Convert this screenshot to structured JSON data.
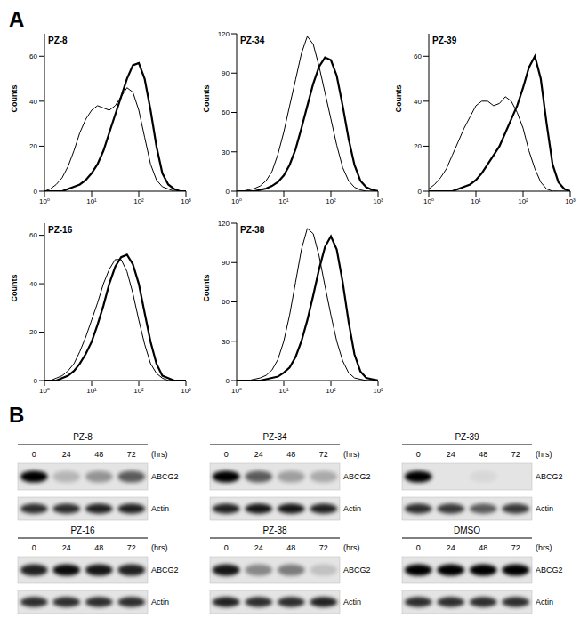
{
  "panel_labels": [
    "A",
    "B"
  ],
  "chart_data": [
    {
      "type": "line",
      "title": "PZ-8",
      "y_label": "Counts",
      "log": "x",
      "x": [
        1,
        1.33,
        1.78,
        2.37,
        3.16,
        4.22,
        5.62,
        7.5,
        10,
        13.3,
        17.8,
        23.7,
        31.6,
        42.2,
        56.2,
        75,
        100,
        133,
        178,
        237,
        316,
        422,
        562,
        750,
        1000
      ],
      "xlim": [
        1,
        1000
      ],
      "xticks": [
        {
          "value": 1,
          "label": "10⁰"
        },
        {
          "value": 10,
          "label": "10¹"
        },
        {
          "value": 100,
          "label": "10²"
        },
        {
          "value": 1000,
          "label": "10³"
        }
      ],
      "ylim": [
        0,
        70
      ],
      "yticks": [
        0,
        20,
        40,
        60
      ],
      "series": [
        {
          "color": "#000000",
          "values": [
            0,
            1,
            3,
            6,
            11,
            18,
            26,
            32,
            36,
            38,
            37,
            36,
            38,
            42,
            46,
            44,
            36,
            24,
            12,
            5,
            2,
            1,
            0,
            0,
            0
          ]
        },
        {
          "color": "#000000",
          "values": [
            0,
            0,
            0,
            0,
            1,
            2,
            3,
            5,
            8,
            12,
            18,
            26,
            34,
            42,
            50,
            56,
            57,
            50,
            36,
            20,
            8,
            3,
            1,
            0,
            0
          ]
        }
      ]
    },
    {
      "type": "line",
      "title": "PZ-34",
      "y_label": "Counts",
      "log": "x",
      "x": [
        1,
        1.33,
        1.78,
        2.37,
        3.16,
        4.22,
        5.62,
        7.5,
        10,
        13.3,
        17.8,
        23.7,
        31.6,
        42.2,
        56.2,
        75,
        100,
        133,
        178,
        237,
        316,
        422,
        562,
        750,
        1000
      ],
      "xlim": [
        1,
        1000
      ],
      "xticks": [
        {
          "value": 1,
          "label": "10⁰"
        },
        {
          "value": 10,
          "label": "10¹"
        },
        {
          "value": 100,
          "label": "10²"
        },
        {
          "value": 1000,
          "label": "10³"
        }
      ],
      "ylim": [
        0,
        120
      ],
      "yticks": [
        0,
        30,
        60,
        90,
        120
      ],
      "series": [
        {
          "color": "#000000",
          "values": [
            0,
            0,
            1,
            2,
            4,
            8,
            15,
            28,
            45,
            65,
            85,
            105,
            118,
            112,
            95,
            75,
            55,
            35,
            18,
            8,
            3,
            1,
            0,
            0,
            0
          ]
        },
        {
          "color": "#000000",
          "values": [
            0,
            0,
            0,
            0,
            1,
            2,
            4,
            7,
            12,
            20,
            32,
            48,
            65,
            82,
            95,
            102,
            100,
            88,
            65,
            40,
            20,
            8,
            3,
            1,
            0
          ]
        }
      ]
    },
    {
      "type": "line",
      "title": "PZ-39",
      "y_label": "Counts",
      "log": "x",
      "x": [
        1,
        1.33,
        1.78,
        2.37,
        3.16,
        4.22,
        5.62,
        7.5,
        10,
        13.3,
        17.8,
        23.7,
        31.6,
        42.2,
        56.2,
        75,
        100,
        133,
        178,
        237,
        316,
        422,
        562,
        750,
        1000
      ],
      "xlim": [
        1,
        1000
      ],
      "xticks": [
        {
          "value": 1,
          "label": "10⁰"
        },
        {
          "value": 10,
          "label": "10¹"
        },
        {
          "value": 100,
          "label": "10²"
        },
        {
          "value": 1000,
          "label": "10³"
        }
      ],
      "ylim": [
        0,
        70
      ],
      "yticks": [
        0,
        20,
        40,
        60
      ],
      "series": [
        {
          "color": "#000000",
          "values": [
            1,
            3,
            6,
            10,
            16,
            22,
            28,
            33,
            38,
            40,
            40,
            38,
            39,
            42,
            40,
            35,
            28,
            18,
            10,
            4,
            1,
            0,
            0,
            0,
            0
          ]
        },
        {
          "color": "#000000",
          "values": [
            0,
            0,
            0,
            0,
            0,
            1,
            2,
            3,
            5,
            8,
            12,
            16,
            20,
            26,
            32,
            38,
            46,
            55,
            60,
            50,
            30,
            12,
            4,
            1,
            0
          ]
        }
      ]
    },
    {
      "type": "line",
      "title": "PZ-16",
      "y_label": "Counts",
      "log": "x",
      "x": [
        1,
        1.33,
        1.78,
        2.37,
        3.16,
        4.22,
        5.62,
        7.5,
        10,
        13.3,
        17.8,
        23.7,
        31.6,
        42.2,
        56.2,
        75,
        100,
        133,
        178,
        237,
        316,
        422,
        562,
        750,
        1000
      ],
      "xlim": [
        1,
        1000
      ],
      "xticks": [
        {
          "value": 1,
          "label": "10⁰"
        },
        {
          "value": 10,
          "label": "10¹"
        },
        {
          "value": 100,
          "label": "10²"
        },
        {
          "value": 1000,
          "label": "10³"
        }
      ],
      "ylim": [
        0,
        65
      ],
      "yticks": [
        0,
        20,
        40,
        60
      ],
      "series": [
        {
          "color": "#000000",
          "values": [
            0,
            0,
            1,
            2,
            4,
            7,
            12,
            18,
            25,
            32,
            40,
            46,
            50,
            50,
            45,
            36,
            25,
            15,
            7,
            3,
            1,
            0,
            0,
            0,
            0
          ]
        },
        {
          "color": "#000000",
          "values": [
            0,
            0,
            0,
            1,
            2,
            4,
            7,
            11,
            16,
            23,
            31,
            40,
            47,
            51,
            52,
            48,
            40,
            28,
            16,
            7,
            2,
            1,
            0,
            0,
            0
          ]
        }
      ]
    },
    {
      "type": "line",
      "title": "PZ-38",
      "y_label": "Counts",
      "log": "x",
      "x": [
        1,
        1.33,
        1.78,
        2.37,
        3.16,
        4.22,
        5.62,
        7.5,
        10,
        13.3,
        17.8,
        23.7,
        31.6,
        42.2,
        56.2,
        75,
        100,
        133,
        178,
        237,
        316,
        422,
        562,
        750,
        1000
      ],
      "xlim": [
        1,
        1000
      ],
      "xticks": [
        {
          "value": 1,
          "label": "10⁰"
        },
        {
          "value": 10,
          "label": "10¹"
        },
        {
          "value": 100,
          "label": "10²"
        },
        {
          "value": 1000,
          "label": "10³"
        }
      ],
      "ylim": [
        0,
        120
      ],
      "yticks": [
        0,
        30,
        60,
        90,
        120
      ],
      "series": [
        {
          "color": "#000000",
          "values": [
            0,
            0,
            0,
            1,
            2,
            4,
            8,
            16,
            30,
            50,
            75,
            100,
            116,
            112,
            95,
            72,
            50,
            30,
            15,
            6,
            2,
            1,
            0,
            0,
            0
          ]
        },
        {
          "color": "#000000",
          "values": [
            0,
            0,
            0,
            0,
            0,
            1,
            2,
            3,
            6,
            10,
            18,
            30,
            46,
            65,
            85,
            102,
            110,
            100,
            75,
            45,
            20,
            7,
            2,
            1,
            0
          ]
        }
      ]
    }
  ],
  "blots": [
    {
      "title": "PZ-8",
      "lanes": [
        "0",
        "24",
        "48",
        "72"
      ],
      "lane_unit": "(hrs)",
      "bands": [
        {
          "label": "ABCG2",
          "intensity": [
            1,
            0.2,
            0.35,
            0.6
          ]
        },
        {
          "label": "Actin",
          "intensity": [
            0.8,
            0.8,
            0.85,
            0.85
          ]
        }
      ]
    },
    {
      "title": "PZ-34",
      "lanes": [
        "0",
        "24",
        "48",
        "72"
      ],
      "lane_unit": "(hrs)",
      "bands": [
        {
          "label": "ABCG2",
          "intensity": [
            1,
            0.6,
            0.3,
            0.25
          ]
        },
        {
          "label": "Actin",
          "intensity": [
            0.85,
            0.9,
            0.9,
            0.85
          ]
        }
      ]
    },
    {
      "title": "PZ-39",
      "lanes": [
        "0",
        "24",
        "48",
        "72"
      ],
      "lane_unit": "(hrs)",
      "bands": [
        {
          "label": "ABCG2",
          "intensity": [
            1,
            0,
            0.05,
            0
          ]
        },
        {
          "label": "Actin",
          "intensity": [
            0.8,
            0.75,
            0.6,
            0.75
          ]
        }
      ]
    },
    {
      "title": "PZ-16",
      "lanes": [
        "0",
        "24",
        "48",
        "72"
      ],
      "lane_unit": "(hrs)",
      "bands": [
        {
          "label": "ABCG2",
          "intensity": [
            0.85,
            0.95,
            0.9,
            0.85
          ]
        },
        {
          "label": "Actin",
          "intensity": [
            0.8,
            0.8,
            0.8,
            0.8
          ]
        }
      ]
    },
    {
      "title": "PZ-38",
      "lanes": [
        "0",
        "24",
        "48",
        "72"
      ],
      "lane_unit": "(hrs)",
      "bands": [
        {
          "label": "ABCG2",
          "intensity": [
            0.9,
            0.4,
            0.45,
            0.15
          ]
        },
        {
          "label": "Actin",
          "intensity": [
            0.85,
            0.8,
            0.8,
            0.85
          ]
        }
      ]
    },
    {
      "title": "DMSO",
      "lanes": [
        "0",
        "24",
        "48",
        "72"
      ],
      "lane_unit": "(hrs)",
      "bands": [
        {
          "label": "ABCG2",
          "intensity": [
            1,
            1,
            1,
            1
          ]
        },
        {
          "label": "Actin",
          "intensity": [
            0.8,
            0.8,
            0.8,
            0.8
          ]
        }
      ]
    }
  ]
}
